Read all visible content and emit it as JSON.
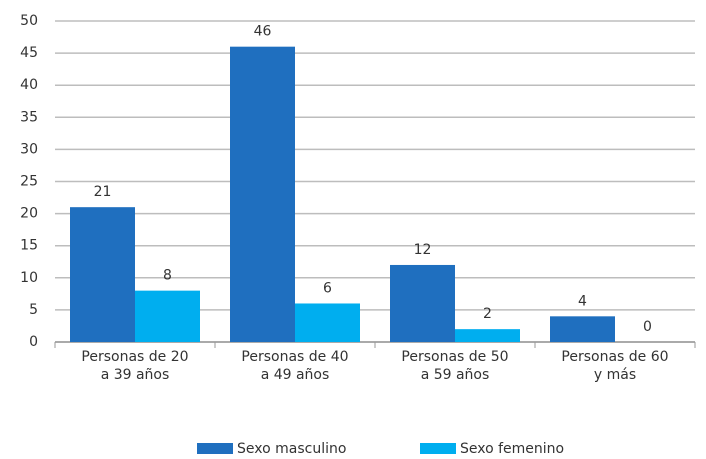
{
  "chart_data": {
    "type": "bar",
    "categories": [
      "Personas de 20 a 39 años",
      "Personas de 40 a 49 años",
      "Personas de 50 a 59 años",
      "Personas de 60 y más"
    ],
    "series": [
      {
        "name": "Sexo masculino",
        "color": "#1f6fbf",
        "values": [
          21,
          46,
          12,
          4
        ]
      },
      {
        "name": "Sexo femenino",
        "color": "#00aeef",
        "values": [
          8,
          6,
          2,
          0
        ]
      }
    ],
    "ylim": [
      0,
      50
    ],
    "yticks": [
      0,
      5,
      10,
      15,
      20,
      25,
      30,
      35,
      40,
      45,
      50
    ],
    "grid": true,
    "legend": "bottom"
  }
}
